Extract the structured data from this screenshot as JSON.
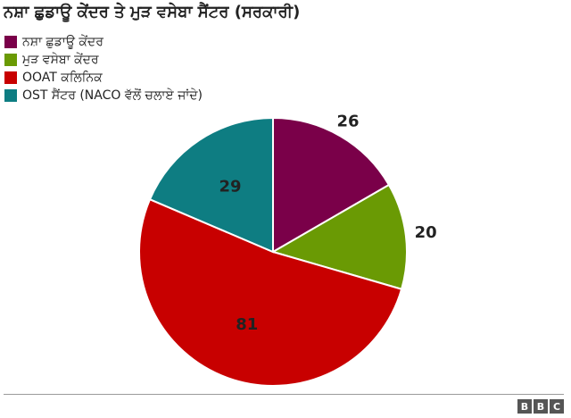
{
  "chart_data": {
    "type": "pie",
    "title": "ਨਸ਼ਾ ਛੁਡਾਊ ਕੇਂਦਰ ਤੇ ਮੁੜ ਵਸੇਬਾ ਸੈਂਟਰ (ਸਰਕਾਰੀ)",
    "categories": [
      "ਨਸ਼ਾ ਛੁਡਾਊ ਕੇਂਦਰ",
      "ਮੁੜ ਵਸੇਬਾ ਕੇਂਦਰ",
      "OOAT ਕਲਿਨਿਕ",
      "OST ਸੈਂਟਰ (NACO ਵੱਲੋਂ ਚਲਾਏ ਜਾਂਦੇ)"
    ],
    "values": [
      26,
      20,
      81,
      29
    ],
    "data_labels": [
      "26",
      "20",
      "81",
      "29"
    ],
    "colors": [
      "#7a0049",
      "#6a9a04",
      "#c80000",
      "#0e7d82"
    ],
    "legend_placement": "top-left"
  },
  "footer": {
    "logo_letters": [
      "B",
      "B",
      "C"
    ]
  }
}
